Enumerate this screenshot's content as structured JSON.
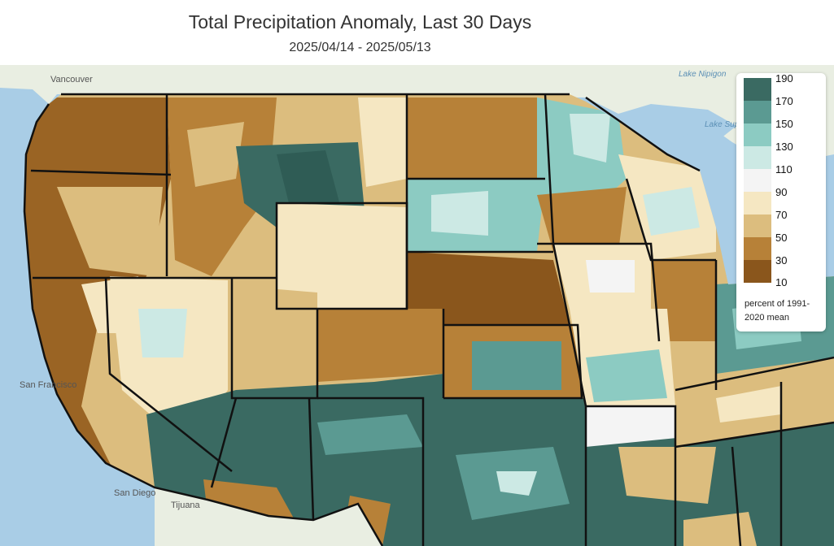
{
  "header": {
    "title": "Total Precipitation Anomaly, Last 30 Days",
    "date_range": "2025/04/14 - 2025/05/13"
  },
  "legend": {
    "ticks": [
      "190",
      "170",
      "150",
      "130",
      "110",
      "90",
      "70",
      "50",
      "30",
      "10"
    ],
    "colors": [
      "#3a6a62",
      "#5b9a92",
      "#8ccbc2",
      "#cce9e4",
      "#f4f4f4",
      "#f5e7c2",
      "#dcbd7e",
      "#b78138",
      "#8a561c"
    ],
    "caption": "percent of 1991-2020 mean"
  },
  "basemap_labels": {
    "vancouver": "Vancouver",
    "lake_nipigon": "Lake Nipigon",
    "lake_superior": "Lake Superior",
    "san_francisco": "San Francisco",
    "san_diego": "San Diego",
    "tijuana": "Tijuana"
  },
  "colors": {
    "ocean": "#a9cde6",
    "land_outside": "#e9eee2",
    "state_border": "#111111"
  }
}
